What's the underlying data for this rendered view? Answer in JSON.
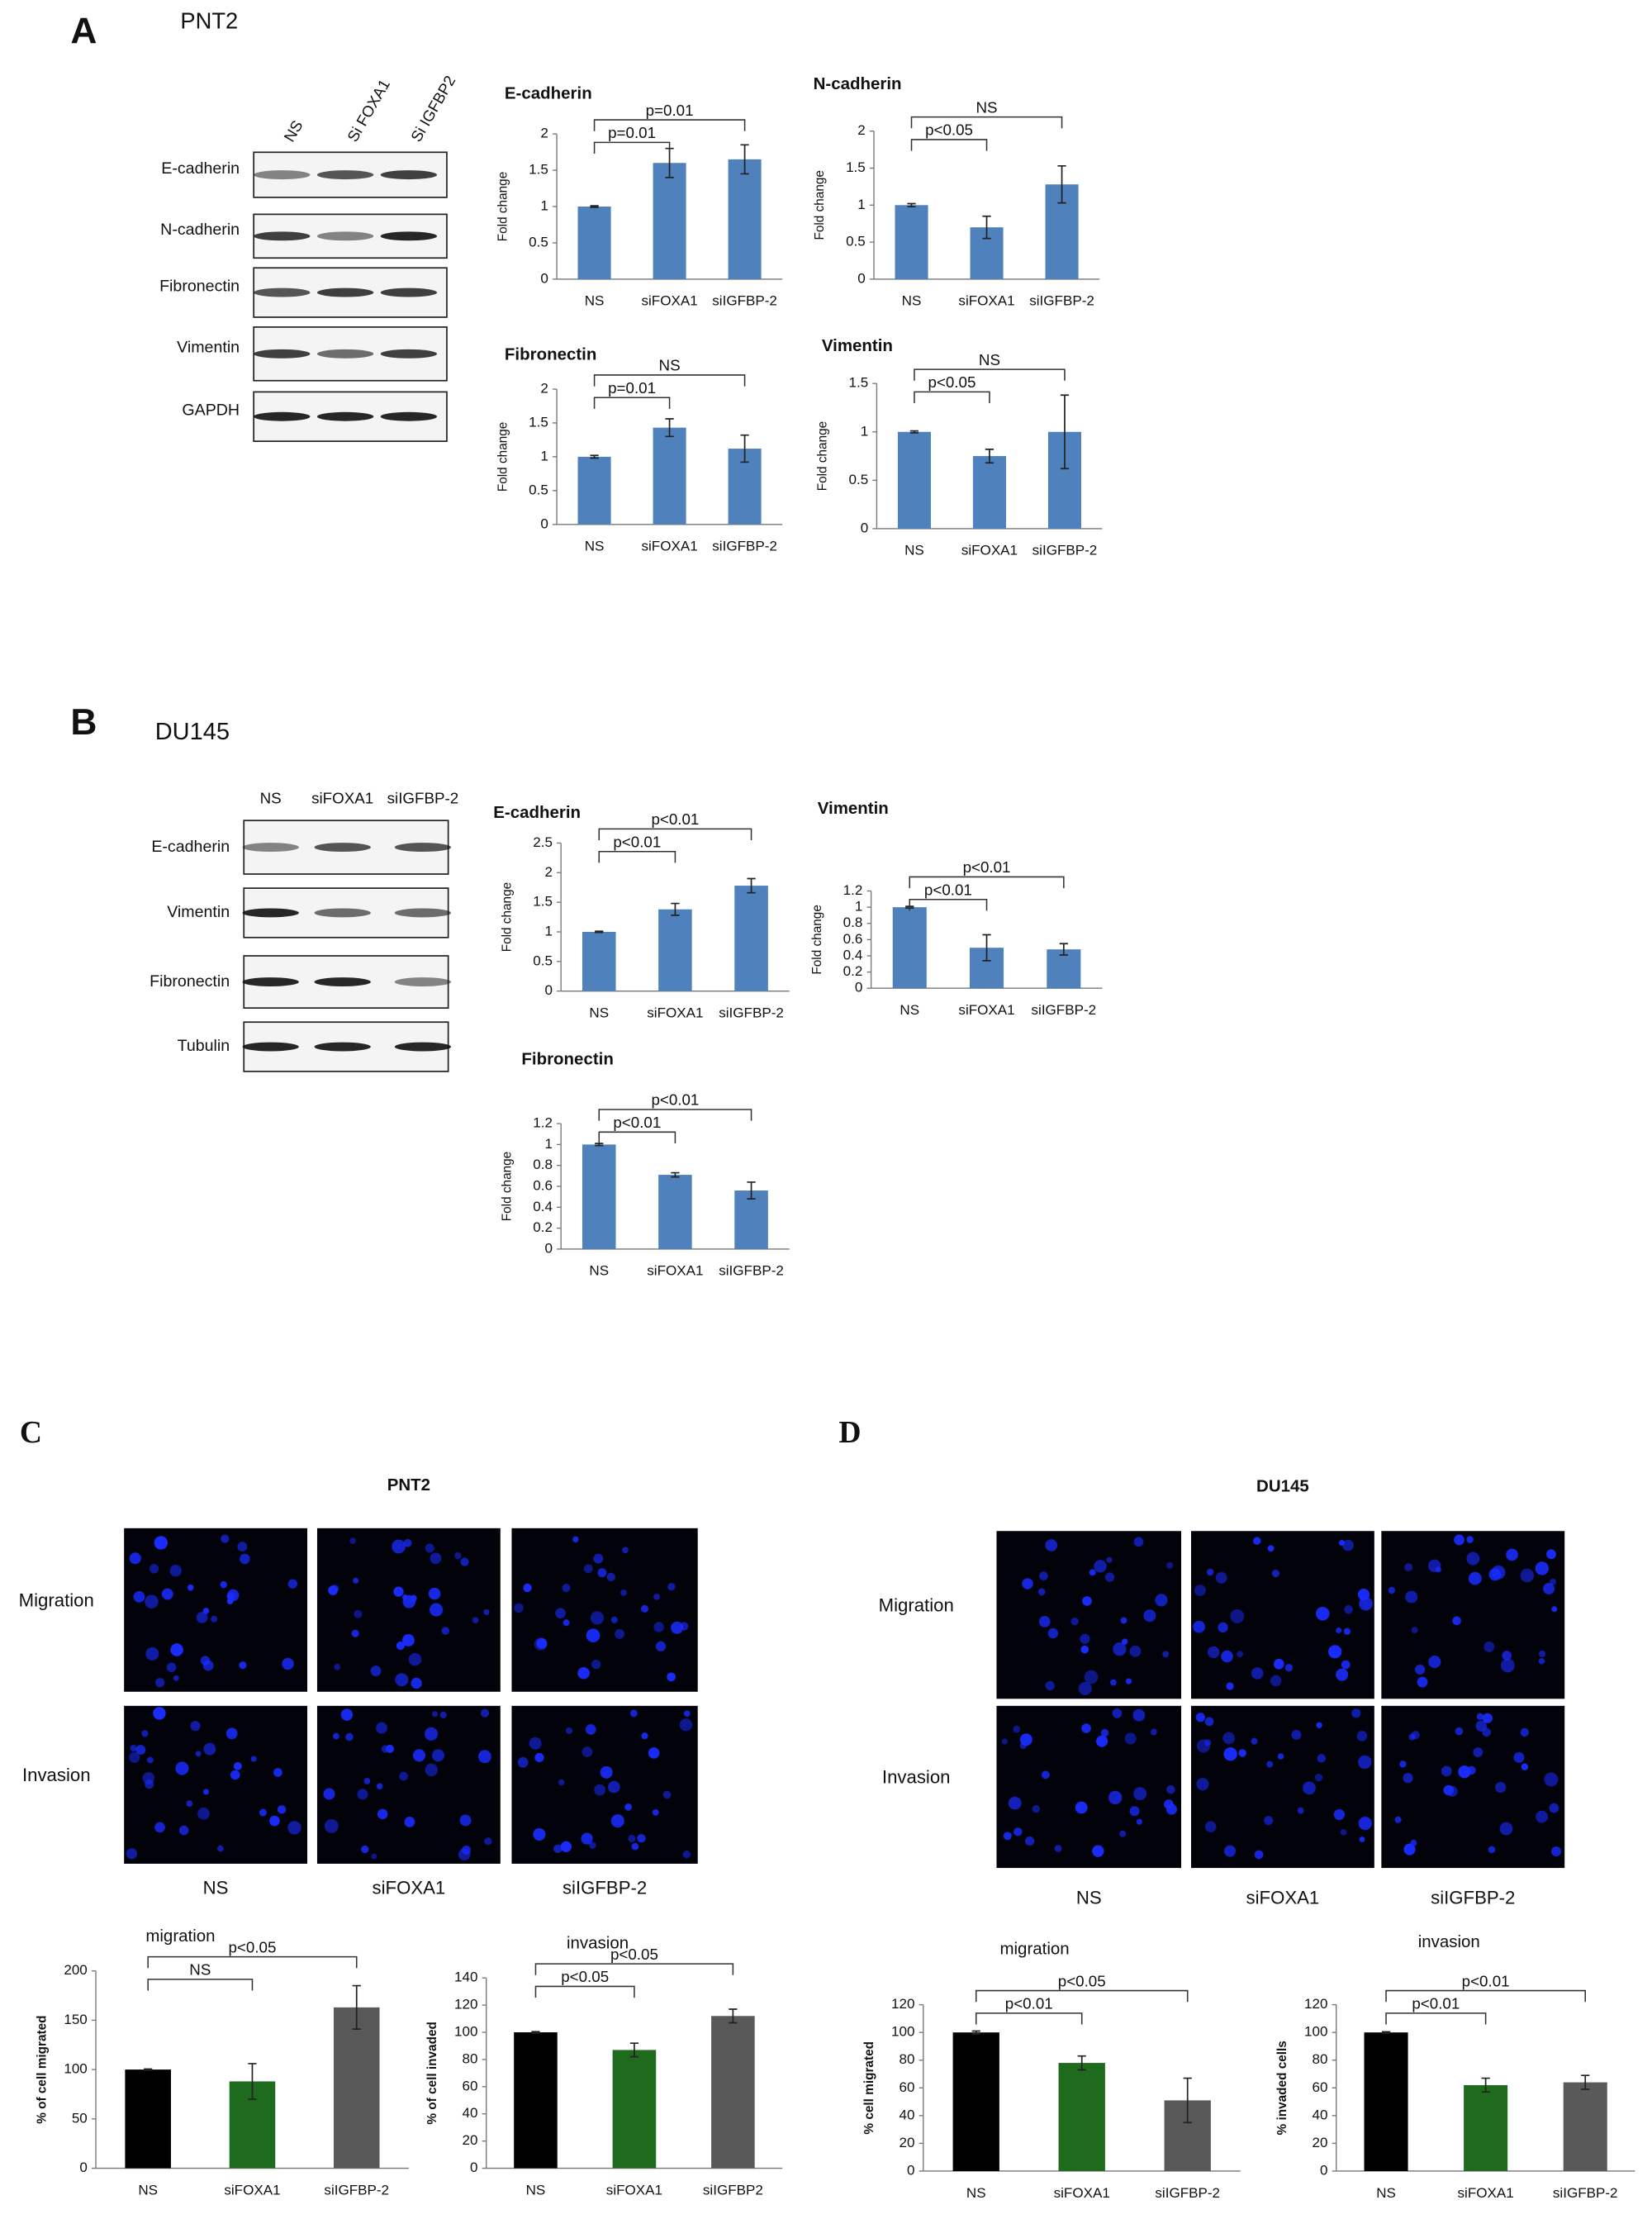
{
  "panels": [
    {
      "label": "A",
      "cell_line": "PNT2"
    },
    {
      "label": "B",
      "cell_line": "DU145"
    },
    {
      "label": "C"
    },
    {
      "label": "D"
    }
  ],
  "blots": [
    {
      "lanes": [
        "NS",
        "Si FOXA1",
        "Si IGFBP2"
      ],
      "rows": [
        "E-cadherin",
        "N-cadherin",
        "Fibronectin",
        "Vimentin",
        "GAPDH"
      ]
    },
    {
      "lanes": [
        "NS",
        "siFOXA1",
        "siIGFBP-2"
      ],
      "rows": [
        "E-cadherin",
        "Vimentin",
        "Fibronectin",
        "Tubulin"
      ]
    }
  ],
  "imaging": [
    {
      "title": "PNT2",
      "rows": [
        "Migration",
        "Invasion"
      ],
      "columns": [
        "NS",
        "siFOXA1",
        "siIGFBP-2"
      ]
    },
    {
      "title": "DU145",
      "rows": [
        "Migration",
        "Invasion"
      ],
      "columns": [
        "NS",
        "siFOXA1",
        "siIGFBP-2"
      ]
    }
  ],
  "chart_data": [
    {
      "type": "bar",
      "title": "E-cadherin",
      "y_label": "Fold change",
      "categories": [
        "NS",
        "siFOXA1",
        "siIGFBP-2"
      ],
      "values": [
        1,
        1.6,
        1.65
      ],
      "errors": [
        0.01,
        0.2,
        0.2
      ],
      "color": "#4f81bd",
      "comparisons": [
        "p=0.01",
        "p=0.01"
      ],
      "ylim": [
        0,
        2
      ],
      "yticks": [
        0,
        0.5,
        1,
        1.5,
        2
      ]
    },
    {
      "type": "bar",
      "title": "N-cadherin",
      "y_label": "Fold change",
      "categories": [
        "NS",
        "siFOXA1",
        "siIGFBP-2"
      ],
      "values": [
        1,
        0.7,
        1.28
      ],
      "errors": [
        0.02,
        0.15,
        0.25
      ],
      "color": "#4f81bd",
      "comparisons": [
        "p<0.05",
        "NS"
      ],
      "ylim": [
        0,
        2
      ],
      "yticks": [
        0,
        0.5,
        1,
        1.5,
        2
      ]
    },
    {
      "type": "bar",
      "title": "Fibronectin",
      "y_label": "Fold change",
      "categories": [
        "NS",
        "siFOXA1",
        "siIGFBP-2"
      ],
      "values": [
        1,
        1.43,
        1.12
      ],
      "errors": [
        0.02,
        0.13,
        0.2
      ],
      "color": "#4f81bd",
      "comparisons": [
        "p=0.01",
        "NS"
      ],
      "ylim": [
        0,
        2
      ],
      "yticks": [
        0,
        0.5,
        1,
        1.5,
        2
      ]
    },
    {
      "type": "bar",
      "title": "Vimentin",
      "y_label": "Fold change",
      "categories": [
        "NS",
        "siFOXA1",
        "siIGFBP-2"
      ],
      "values": [
        1,
        0.75,
        1
      ],
      "errors": [
        0.01,
        0.07,
        0.38
      ],
      "color": "#4f81bd",
      "comparisons": [
        "p<0.05",
        "NS"
      ],
      "ylim": [
        0,
        1.5
      ],
      "yticks": [
        0,
        0.5,
        1,
        1.5
      ]
    },
    {
      "type": "bar",
      "title": "E-cadherin",
      "y_label": "Fold change",
      "categories": [
        "NS",
        "siFOXA1",
        "siIGFBP-2"
      ],
      "values": [
        1,
        1.38,
        1.78
      ],
      "errors": [
        0.01,
        0.1,
        0.12
      ],
      "color": "#4f81bd",
      "comparisons": [
        "p<0.01",
        "p<0.01"
      ],
      "ylim": [
        0,
        2.5
      ],
      "yticks": [
        0,
        0.5,
        1,
        1.5,
        2,
        2.5
      ]
    },
    {
      "type": "bar",
      "title": "Vimentin",
      "y_label": "Fold change",
      "categories": [
        "NS",
        "siFOXA1",
        "siIGFBP-2"
      ],
      "values": [
        1,
        0.5,
        0.48
      ],
      "errors": [
        0.01,
        0.16,
        0.07
      ],
      "color": "#4f81bd",
      "comparisons": [
        "p<0.01",
        "p<0.01"
      ],
      "ylim": [
        0,
        1.2
      ],
      "yticks": [
        0,
        0.2,
        0.4,
        0.6,
        0.8,
        1,
        1.2
      ]
    },
    {
      "type": "bar",
      "title": "Fibronectin",
      "y_label": "Fold change",
      "categories": [
        "NS",
        "siFOXA1",
        "siIGFBP-2"
      ],
      "values": [
        1,
        0.71,
        0.56
      ],
      "errors": [
        0.01,
        0.02,
        0.08
      ],
      "color": "#4f81bd",
      "comparisons": [
        "p<0.01",
        "p<0.01"
      ],
      "ylim": [
        0,
        1.2
      ],
      "yticks": [
        0,
        0.2,
        0.4,
        0.6,
        0.8,
        1,
        1.2
      ]
    },
    {
      "type": "bar",
      "title": "migration",
      "y_label": "% of cell migrated",
      "categories": [
        "NS",
        "siFOXA1",
        "siIGFBP-2"
      ],
      "values": [
        100,
        88,
        163
      ],
      "errors": [
        0.5,
        18,
        22
      ],
      "colors": [
        "#000000",
        "#1e6b1e",
        "#595959"
      ],
      "comparisons": [
        "NS",
        "p<0.05"
      ],
      "ylim": [
        0,
        200
      ],
      "yticks": [
        0,
        50,
        100,
        150,
        200
      ]
    },
    {
      "type": "bar",
      "title": "invasion",
      "y_label": "% of cell invaded",
      "categories": [
        "NS",
        "siFOXA1",
        "siIGFBP2"
      ],
      "values": [
        100,
        87,
        112
      ],
      "errors": [
        0.5,
        5,
        5
      ],
      "colors": [
        "#000000",
        "#1e6b1e",
        "#595959"
      ],
      "comparisons": [
        "p<0.05",
        "p<0.05"
      ],
      "ylim": [
        0,
        140
      ],
      "yticks": [
        0,
        20,
        40,
        60,
        80,
        100,
        120,
        140
      ]
    },
    {
      "type": "bar",
      "title": "migration",
      "y_label": "% cell migrated",
      "categories": [
        "NS",
        "siFOXA1",
        "siIGFBP-2"
      ],
      "values": [
        100,
        78,
        51
      ],
      "errors": [
        1,
        5,
        16
      ],
      "colors": [
        "#000000",
        "#1e6b1e",
        "#595959"
      ],
      "comparisons": [
        "p<0.01",
        "p<0.05"
      ],
      "ylim": [
        0,
        120
      ],
      "yticks": [
        0,
        20,
        40,
        60,
        80,
        100,
        120
      ]
    },
    {
      "type": "bar",
      "title": "invasion",
      "y_label": "% invaded cells",
      "categories": [
        "NS",
        "siFOXA1",
        "siIGFBP-2"
      ],
      "values": [
        100,
        62,
        64
      ],
      "errors": [
        0.5,
        5,
        5
      ],
      "colors": [
        "#000000",
        "#1e6b1e",
        "#595959"
      ],
      "comparisons": [
        "p<0.01",
        "p<0.01"
      ],
      "ylim": [
        0,
        120
      ],
      "yticks": [
        0,
        20,
        40,
        60,
        80,
        100,
        120
      ]
    }
  ]
}
